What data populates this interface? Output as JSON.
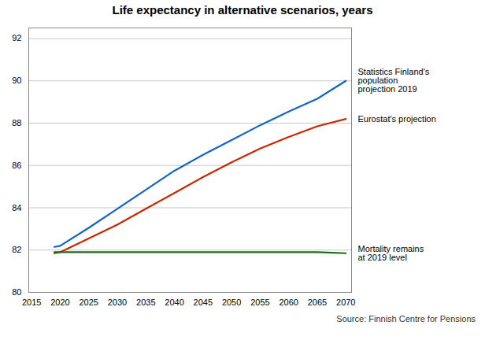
{
  "chart_data": {
    "type": "line",
    "title": "Life expectancy in alternative scenarios, years",
    "source": "Source: Finnish Centre for Pensions",
    "x": [
      2019,
      2020,
      2025,
      2030,
      2035,
      2040,
      2045,
      2050,
      2055,
      2060,
      2065,
      2070
    ],
    "series": [
      {
        "name": "Statistics Finland's\npopulation\nprojection 2019",
        "color": "#1464c8",
        "values": [
          82.15,
          82.2,
          83.05,
          83.95,
          84.85,
          85.75,
          86.5,
          87.2,
          87.9,
          88.55,
          89.15,
          90.0
        ]
      },
      {
        "name": "Eurostat's projection",
        "color": "#c82800",
        "values": [
          81.85,
          81.9,
          82.55,
          83.2,
          83.95,
          84.7,
          85.45,
          86.15,
          86.8,
          87.35,
          87.85,
          88.2
        ]
      },
      {
        "name": "Mortality remains\nat 2019 level",
        "color": "#1a6b1a",
        "values": [
          81.9,
          81.9,
          81.9,
          81.9,
          81.9,
          81.9,
          81.9,
          81.9,
          81.9,
          81.9,
          81.9,
          81.85
        ]
      }
    ],
    "xlim": [
      2014.5,
      2071
    ],
    "ylim": [
      80,
      92.5
    ],
    "xticks": [
      2015,
      2020,
      2025,
      2030,
      2035,
      2040,
      2045,
      2050,
      2055,
      2060,
      2065,
      2070
    ],
    "yticks": [
      80,
      82,
      84,
      86,
      88,
      90,
      92
    ],
    "grid": true
  }
}
